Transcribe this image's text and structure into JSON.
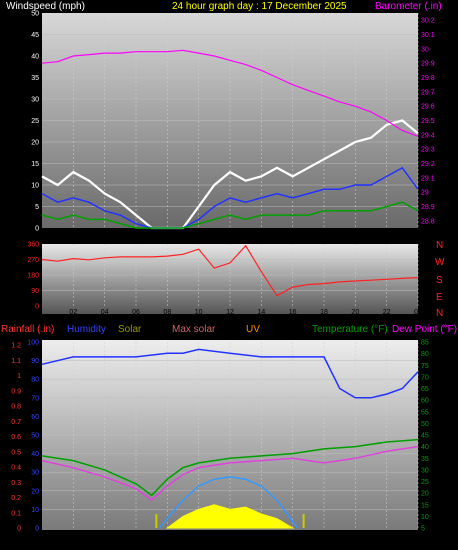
{
  "header": {
    "left": "Windspeed (mph)",
    "center": "24 hour graph day : 17 December 2025",
    "right": "Barometer (.in)"
  },
  "colors": {
    "white": "#ffffff",
    "blue": "#2233ff",
    "green": "#00a000",
    "magenta": "#ff00ff",
    "red": "#ff2222",
    "yellow": "#ffff00",
    "olive": "#9a9a00",
    "orange": "#ff8800",
    "lightblue": "#3399ff",
    "pink": "#dd44dd",
    "brown": "#996666",
    "gold": "#cccc00"
  },
  "wind_dir_labels": [
    "N",
    "W",
    "S",
    "E",
    "N"
  ],
  "bottom_header": {
    "rainfall": "Rainfall (.in)",
    "humidity": "Humidity",
    "solar": "Solar",
    "max_solar": "Max solar",
    "uv": "UV",
    "temperature": "Temperature (°F)",
    "dew_point": "Dew Point (°F)"
  },
  "chart_data": [
    {
      "type": "line",
      "panel": "wind_barometer",
      "x_ticks": [
        "02",
        "04",
        "06",
        "08",
        "10",
        "12",
        "14",
        "16",
        "18",
        "20",
        "22",
        "00"
      ],
      "y_left_ticks": [
        "0",
        "5",
        "10",
        "15",
        "20",
        "25",
        "30",
        "35",
        "40",
        "45",
        "50"
      ],
      "y_right_ticks": [
        "28.8",
        "28.9",
        "29",
        "29.1",
        "29.2",
        "29.3",
        "29.4",
        "29.5",
        "29.6",
        "29.7",
        "29.8",
        "29.9",
        "30",
        "30.1",
        "30.2"
      ],
      "ylim_left": [
        0,
        50
      ],
      "ylim_right": [
        28.75,
        30.25
      ],
      "series": [
        {
          "name": "Windspeed",
          "color": "white",
          "x": [
            0,
            1,
            2,
            3,
            4,
            5,
            6,
            7,
            8,
            9,
            10,
            11,
            12,
            13,
            14,
            15,
            16,
            17,
            18,
            19,
            20,
            21,
            22,
            23,
            24
          ],
          "y": [
            12,
            10,
            13,
            11,
            8,
            6,
            3,
            0,
            0,
            0,
            5,
            10,
            13,
            11,
            12,
            14,
            12,
            14,
            16,
            18,
            20,
            21,
            24,
            25,
            22
          ]
        },
        {
          "name": "Gust avg",
          "color": "blue",
          "x": [
            0,
            1,
            2,
            3,
            4,
            5,
            6,
            7,
            8,
            9,
            10,
            11,
            12,
            13,
            14,
            15,
            16,
            17,
            18,
            19,
            20,
            21,
            22,
            23,
            24
          ],
          "y": [
            8,
            6,
            7,
            6,
            4,
            3,
            1,
            0,
            0,
            0,
            2,
            5,
            7,
            6,
            7,
            8,
            7,
            8,
            9,
            9,
            10,
            10,
            12,
            14,
            9
          ]
        },
        {
          "name": "Wind avg",
          "color": "green",
          "x": [
            0,
            1,
            2,
            3,
            4,
            5,
            6,
            7,
            8,
            9,
            10,
            11,
            12,
            13,
            14,
            15,
            16,
            17,
            18,
            19,
            20,
            21,
            22,
            23,
            24
          ],
          "y": [
            3,
            2,
            3,
            2,
            2,
            1,
            0,
            0,
            0,
            0,
            1,
            2,
            3,
            2,
            3,
            3,
            3,
            3,
            4,
            4,
            4,
            4,
            5,
            6,
            4
          ]
        },
        {
          "name": "Barometer",
          "color": "magenta",
          "axis": "right",
          "x": [
            0,
            1,
            2,
            3,
            4,
            5,
            6,
            7,
            8,
            9,
            10,
            11,
            12,
            13,
            14,
            15,
            16,
            17,
            18,
            19,
            20,
            21,
            22,
            23,
            24
          ],
          "y": [
            29.9,
            29.91,
            29.95,
            29.96,
            29.97,
            29.97,
            29.98,
            29.98,
            29.98,
            29.99,
            29.97,
            29.95,
            29.92,
            29.89,
            29.85,
            29.8,
            29.75,
            29.71,
            29.67,
            29.63,
            29.6,
            29.56,
            29.5,
            29.43,
            29.39
          ]
        }
      ]
    },
    {
      "type": "line",
      "panel": "wind_direction",
      "x_ticks": [
        "02",
        "04",
        "06",
        "08",
        "10",
        "12",
        "14",
        "16",
        "18",
        "20",
        "22",
        "00"
      ],
      "y_ticks": [
        "0",
        "90",
        "180",
        "270",
        "360"
      ],
      "ylim": [
        0,
        360
      ],
      "series": [
        {
          "name": "Wind direction",
          "color": "red",
          "x": [
            0,
            1,
            2,
            3,
            4,
            5,
            6,
            7,
            8,
            9,
            10,
            11,
            12,
            13,
            14,
            15,
            16,
            17,
            18,
            19,
            20,
            21,
            22,
            23,
            24
          ],
          "y": [
            270,
            260,
            275,
            268,
            280,
            285,
            285,
            285,
            290,
            300,
            330,
            220,
            250,
            350,
            200,
            60,
            110,
            125,
            130,
            140,
            145,
            150,
            155,
            160,
            165
          ]
        }
      ]
    },
    {
      "type": "line",
      "panel": "temp_humidity_rain_solar",
      "x_ticks": [
        "02",
        "04",
        "06",
        "08",
        "10",
        "12",
        "14",
        "16",
        "18",
        "20",
        "22",
        "00"
      ],
      "y_left_ticks": [
        "0",
        "10",
        "20",
        "30",
        "40",
        "50",
        "60",
        "70",
        "80",
        "90",
        "100"
      ],
      "y_rain_ticks": [
        "0",
        "0.1",
        "0.2",
        "0.3",
        "0.4",
        "0.5",
        "0.6",
        "0.7",
        "0.8",
        "0.9",
        "1",
        "1.1",
        "1.2"
      ],
      "y_right_ticks": [
        "5",
        "10",
        "15",
        "20",
        "25",
        "30",
        "35",
        "40",
        "45",
        "50",
        "55",
        "60",
        "65",
        "70",
        "75",
        "80",
        "85"
      ],
      "ylim_left": [
        0,
        100
      ],
      "ylim_right": [
        5,
        85
      ],
      "series": [
        {
          "name": "Humidity",
          "color": "blue",
          "x": [
            0,
            2,
            4,
            6,
            8,
            9,
            10,
            12,
            14,
            16,
            18,
            19,
            20,
            21,
            22,
            23,
            24
          ],
          "y": [
            88,
            92,
            92,
            92,
            94,
            94,
            96,
            94,
            92,
            92,
            92,
            75,
            70,
            70,
            72,
            75,
            84
          ]
        },
        {
          "name": "Temperature",
          "color": "green",
          "axis": "right",
          "x": [
            0,
            2,
            4,
            6,
            7,
            8,
            9,
            10,
            12,
            14,
            16,
            18,
            20,
            22,
            24
          ],
          "y": [
            36,
            34,
            30,
            24,
            19,
            26,
            31,
            33,
            35,
            36,
            37,
            39,
            40,
            42,
            43
          ]
        },
        {
          "name": "Dew Point",
          "color": "magenta",
          "axis": "right",
          "x": [
            0,
            2,
            4,
            6,
            7,
            8,
            9,
            10,
            12,
            14,
            16,
            18,
            20,
            22,
            24
          ],
          "y": [
            34,
            31,
            27,
            22,
            17,
            23,
            28,
            31,
            33,
            34,
            35,
            33,
            35,
            38,
            40
          ]
        },
        {
          "name": "Max solar",
          "color": "lightblue",
          "axis": "right",
          "x": [
            7.5,
            8,
            9,
            10,
            11,
            12,
            13,
            14,
            15,
            16.3
          ],
          "y": [
            5,
            9,
            17,
            23,
            26,
            27,
            26,
            23,
            17,
            5
          ]
        },
        {
          "name": "Solar",
          "color": "yellow",
          "axis": "right",
          "x": [
            8,
            9,
            10,
            11,
            12,
            13,
            14,
            15,
            16
          ],
          "y": [
            5,
            10,
            13,
            15,
            13,
            14,
            11,
            9,
            5
          ]
        }
      ]
    }
  ]
}
